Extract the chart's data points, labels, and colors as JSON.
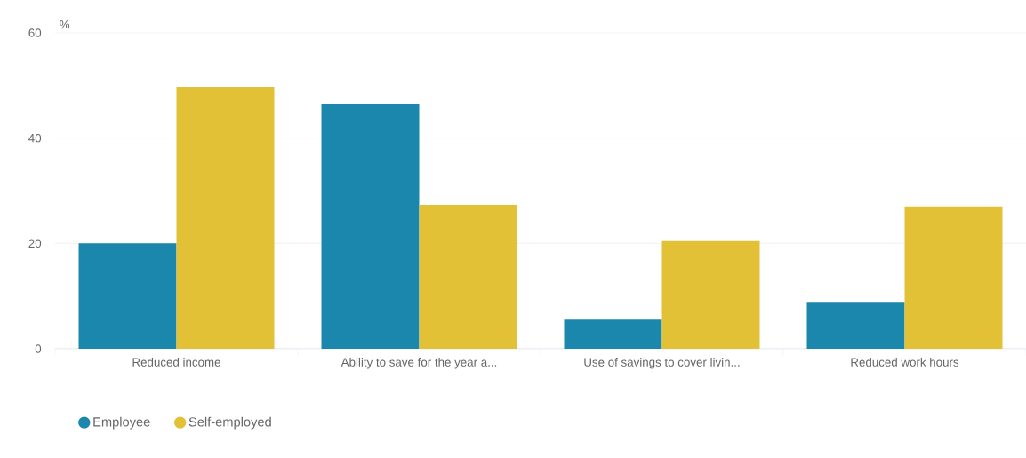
{
  "chart_data": {
    "type": "bar",
    "ylabel": "%",
    "categories": [
      "Reduced income",
      "Ability to save for the year a...",
      "Use of savings to cover livin...",
      "Reduced work hours"
    ],
    "series": [
      {
        "name": "Employee",
        "color": "#1b87ad",
        "values": [
          20,
          46.5,
          5.7,
          8.9
        ]
      },
      {
        "name": "Self-employed",
        "color": "#e2c136",
        "values": [
          49.7,
          27.3,
          20.6,
          27
        ]
      }
    ],
    "ylim": [
      0,
      60
    ],
    "yticks": [
      0,
      20,
      40,
      60
    ],
    "grid": "y",
    "legend": "bottom left"
  }
}
